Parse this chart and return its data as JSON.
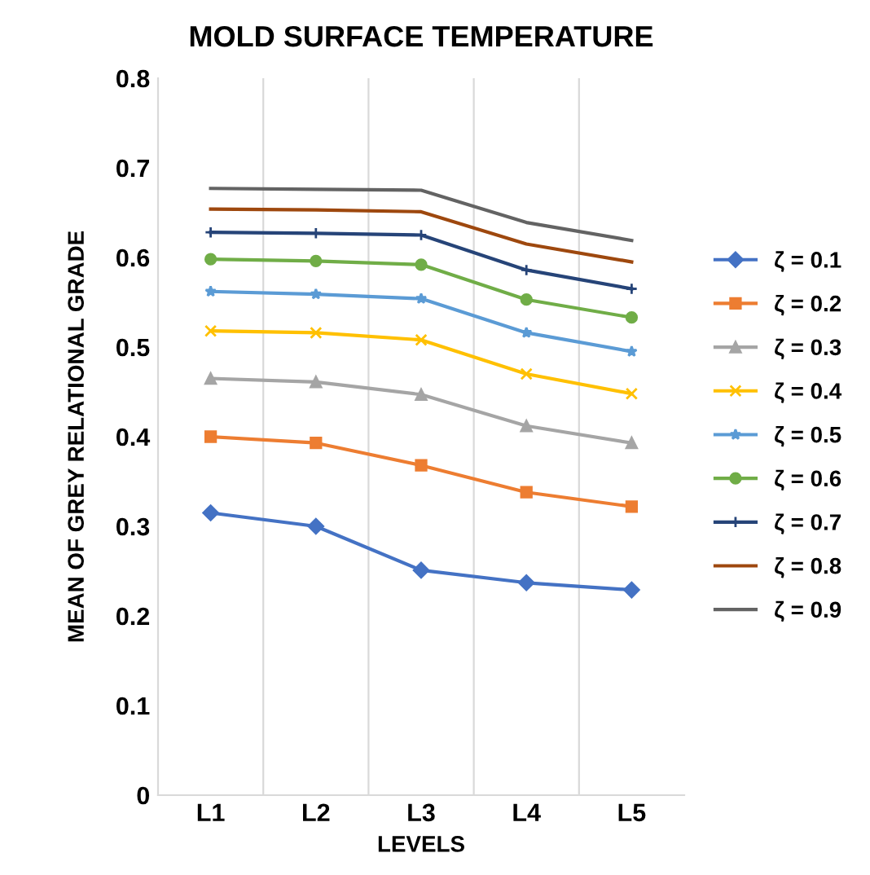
{
  "chart_data": {
    "type": "line",
    "title": "MOLD SURFACE TEMPERATURE",
    "xlabel": "LEVELS",
    "ylabel": "MEAN OF GREY RELATIONAL GRADE",
    "categories": [
      "L1",
      "L2",
      "L3",
      "L4",
      "L5"
    ],
    "series": [
      {
        "name": "ζ = 0.1",
        "color": "#4472c4",
        "marker": "diamond",
        "values": [
          0.315,
          0.3,
          0.251,
          0.237,
          0.229
        ]
      },
      {
        "name": "ζ = 0.2",
        "color": "#ed7d31",
        "marker": "square",
        "values": [
          0.4,
          0.393,
          0.368,
          0.338,
          0.322
        ]
      },
      {
        "name": "ζ = 0.3",
        "color": "#a5a5a5",
        "marker": "triangle",
        "values": [
          0.465,
          0.461,
          0.447,
          0.412,
          0.393
        ]
      },
      {
        "name": "ζ = 0.4",
        "color": "#ffc000",
        "marker": "cross",
        "values": [
          0.518,
          0.516,
          0.508,
          0.47,
          0.448
        ]
      },
      {
        "name": "ζ = 0.5",
        "color": "#5b9bd5",
        "marker": "star",
        "values": [
          0.562,
          0.559,
          0.554,
          0.516,
          0.495
        ]
      },
      {
        "name": "ζ = 0.6",
        "color": "#70ad47",
        "marker": "circle",
        "values": [
          0.598,
          0.596,
          0.592,
          0.553,
          0.533
        ]
      },
      {
        "name": "ζ = 0.7",
        "color": "#264478",
        "marker": "plus",
        "values": [
          0.628,
          0.627,
          0.625,
          0.586,
          0.565
        ]
      },
      {
        "name": "ζ = 0.8",
        "color": "#9e480e",
        "marker": "none",
        "values": [
          0.654,
          0.653,
          0.651,
          0.615,
          0.595
        ]
      },
      {
        "name": "ζ = 0.9",
        "color": "#636363",
        "marker": "none",
        "values": [
          0.677,
          0.676,
          0.675,
          0.639,
          0.619
        ]
      }
    ],
    "ylim": [
      0,
      0.8
    ],
    "yticks": [
      0,
      0.1,
      0.2,
      0.3,
      0.4,
      0.5,
      0.6,
      0.7,
      0.8
    ],
    "grid": "x",
    "legend": "right",
    "line_style": "solid"
  }
}
